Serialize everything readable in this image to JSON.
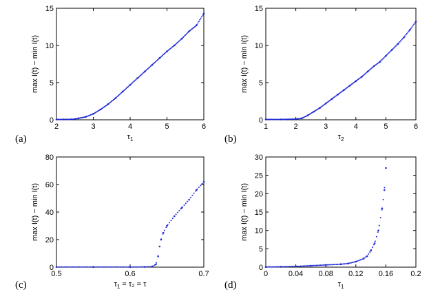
{
  "chart_data": [
    {
      "id": "a",
      "type": "scatter",
      "panel_label": "(a)",
      "ylabel": "max I(t) − min I(t)",
      "xlabel": {
        "base": "τ",
        "sub": "1",
        "rest": ""
      },
      "xlim": [
        2,
        6
      ],
      "ylim": [
        0,
        15
      ],
      "xticks": [
        2,
        3,
        4,
        5,
        6
      ],
      "yticks": [
        0,
        5,
        10,
        15
      ],
      "xtick_labels": [
        "2",
        "3",
        "4",
        "5",
        "6"
      ],
      "ytick_labels": [
        "0",
        "5",
        "10",
        "15"
      ],
      "color": "#1f2ad6",
      "points": [
        [
          2.0,
          0.05
        ],
        [
          2.2,
          0.05
        ],
        [
          2.4,
          0.06
        ],
        [
          2.5,
          0.1
        ],
        [
          2.6,
          0.2
        ],
        [
          2.8,
          0.4
        ],
        [
          3.0,
          0.8
        ],
        [
          3.2,
          1.4
        ],
        [
          3.4,
          2.1
        ],
        [
          3.6,
          2.9
        ],
        [
          3.8,
          3.8
        ],
        [
          4.0,
          4.7
        ],
        [
          4.2,
          5.6
        ],
        [
          4.4,
          6.5
        ],
        [
          4.6,
          7.4
        ],
        [
          4.8,
          8.3
        ],
        [
          5.0,
          9.2
        ],
        [
          5.2,
          10.0
        ],
        [
          5.4,
          10.9
        ],
        [
          5.6,
          11.9
        ],
        [
          5.8,
          12.7
        ],
        [
          6.0,
          14.3
        ]
      ]
    },
    {
      "id": "b",
      "type": "scatter",
      "panel_label": "(b)",
      "ylabel": "max I(t) − min I(t)",
      "xlabel": {
        "base": "τ",
        "sub": "2",
        "rest": ""
      },
      "xlim": [
        1,
        6
      ],
      "ylim": [
        0,
        15
      ],
      "xticks": [
        1,
        2,
        3,
        4,
        5,
        6
      ],
      "yticks": [
        0,
        5,
        10,
        15
      ],
      "xtick_labels": [
        "1",
        "2",
        "3",
        "4",
        "5",
        "6"
      ],
      "ytick_labels": [
        "0",
        "5",
        "10",
        "15"
      ],
      "color": "#1f2ad6",
      "points": [
        [
          1.0,
          0.05
        ],
        [
          1.5,
          0.05
        ],
        [
          2.0,
          0.1
        ],
        [
          2.2,
          0.2
        ],
        [
          2.4,
          0.6
        ],
        [
          2.6,
          1.1
        ],
        [
          2.8,
          1.6
        ],
        [
          3.0,
          2.2
        ],
        [
          3.2,
          2.8
        ],
        [
          3.4,
          3.4
        ],
        [
          3.6,
          4.0
        ],
        [
          3.8,
          4.6
        ],
        [
          4.0,
          5.2
        ],
        [
          4.2,
          5.8
        ],
        [
          4.4,
          6.5
        ],
        [
          4.6,
          7.2
        ],
        [
          4.8,
          7.8
        ],
        [
          5.0,
          8.6
        ],
        [
          5.2,
          9.4
        ],
        [
          5.4,
          10.2
        ],
        [
          5.6,
          11.1
        ],
        [
          5.8,
          12.1
        ],
        [
          6.0,
          13.2
        ]
      ]
    },
    {
      "id": "c",
      "type": "scatter",
      "panel_label": "(c)",
      "ylabel": "max I(t) − min I(t)",
      "xlabel": {
        "base": "τ",
        "sub": "1",
        "rest": " = τ₂ = τ"
      },
      "xlim": [
        0.5,
        0.7
      ],
      "ylim": [
        0,
        80
      ],
      "xticks": [
        0.5,
        0.6,
        0.7
      ],
      "yticks": [
        0,
        20,
        40,
        60,
        80
      ],
      "xtick_labels": [
        "0.5",
        "0.6",
        "0.7"
      ],
      "ytick_labels": [
        "0",
        "20",
        "40",
        "60",
        "80"
      ],
      "color": "#1f2ad6",
      "points": [
        [
          0.5,
          0.1
        ],
        [
          0.55,
          0.1
        ],
        [
          0.6,
          0.1
        ],
        [
          0.62,
          0.2
        ],
        [
          0.63,
          0.5
        ],
        [
          0.635,
          2
        ],
        [
          0.638,
          8
        ],
        [
          0.64,
          15
        ],
        [
          0.642,
          20
        ],
        [
          0.645,
          25
        ],
        [
          0.65,
          30
        ],
        [
          0.66,
          37
        ],
        [
          0.67,
          43
        ],
        [
          0.68,
          49
        ],
        [
          0.69,
          56
        ],
        [
          0.7,
          62
        ]
      ]
    },
    {
      "id": "d",
      "type": "scatter",
      "panel_label": "(d)",
      "ylabel": "max I(t) − min I(t)",
      "xlabel": {
        "base": "τ",
        "sub": "1",
        "rest": ""
      },
      "xlim": [
        0,
        0.2
      ],
      "ylim": [
        0,
        30
      ],
      "xticks": [
        0,
        0.04,
        0.08,
        0.12,
        0.16,
        0.2
      ],
      "yticks": [
        0,
        5,
        10,
        15,
        20,
        25,
        30
      ],
      "xtick_labels": [
        "0",
        "0.04",
        "0.08",
        "0.12",
        "0.16",
        "0.2"
      ],
      "ytick_labels": [
        "0",
        "5",
        "10",
        "15",
        "20",
        "25",
        "30"
      ],
      "color": "#1f2ad6",
      "points": [
        [
          0.0,
          0.05
        ],
        [
          0.02,
          0.1
        ],
        [
          0.04,
          0.2
        ],
        [
          0.06,
          0.4
        ],
        [
          0.08,
          0.6
        ],
        [
          0.1,
          0.8
        ],
        [
          0.11,
          1.0
        ],
        [
          0.12,
          1.5
        ],
        [
          0.13,
          2.3
        ],
        [
          0.135,
          3.0
        ],
        [
          0.14,
          4.5
        ],
        [
          0.145,
          6.5
        ],
        [
          0.15,
          10
        ],
        [
          0.155,
          16
        ],
        [
          0.158,
          21
        ],
        [
          0.16,
          27
        ]
      ]
    }
  ]
}
